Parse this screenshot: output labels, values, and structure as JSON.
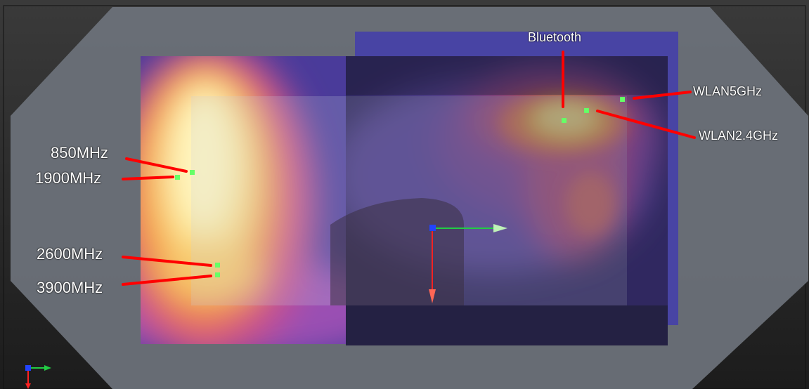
{
  "labels": {
    "bluetooth": "Bluetooth",
    "wlan5": "WLAN5GHz",
    "wlan24": "WLAN2.4GHz",
    "m850": "850MHz",
    "m1900": "1900MHz",
    "m2600": "2600MHz",
    "m3900": "3900MHz"
  },
  "colors": {
    "pointer": "#ff0000",
    "marker": "#66ff66",
    "background": "#2a2a2a",
    "device_outline": "#6b7179",
    "axis_x": "#22cc44",
    "axis_y": "#ff2222",
    "axis_z": "#2244ff"
  },
  "icons": [
    "coordinate-axes-icon",
    "origin-axes-icon"
  ]
}
